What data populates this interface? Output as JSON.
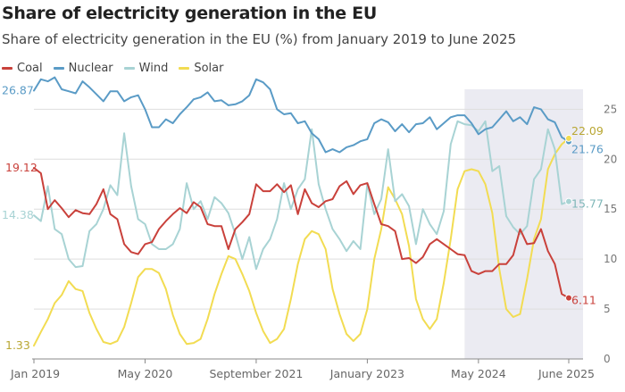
{
  "header": {
    "title": "Share of electricity generation in the EU",
    "subtitle": "Share of electricity generation in the EU (%) from January 2019 to June 2025"
  },
  "legend": [
    {
      "label": "Coal",
      "color": "#c9413b"
    },
    {
      "label": "Nuclear",
      "color": "#5a9bc6"
    },
    {
      "label": "Wind",
      "color": "#a8d3d4"
    },
    {
      "label": "Solar",
      "color": "#f2dc52"
    }
  ],
  "colors": {
    "highlight": "#ebebf2",
    "grid": "#dedede",
    "axis": "#888888",
    "tick_text": "#777777"
  },
  "chart_data": {
    "type": "line",
    "title": "Share of electricity generation in the EU",
    "subtitle": "Share of electricity generation in the EU (%) from January 2019 to June 2025",
    "xlabel": "",
    "ylabel": "%",
    "ylim": [
      0,
      27
    ],
    "yticks": [
      0,
      5,
      10,
      15,
      20,
      25
    ],
    "x_start": "Jan 2019",
    "n_months": 78,
    "x_tick_labels": [
      {
        "month_index": 0,
        "label": "Jan 2019"
      },
      {
        "month_index": 16,
        "label": "May 2020"
      },
      {
        "month_index": 32,
        "label": "September 2021"
      },
      {
        "month_index": 48,
        "label": "January 2023"
      },
      {
        "month_index": 64,
        "label": "May 2024"
      },
      {
        "month_index": 77,
        "label": "June 2025"
      }
    ],
    "highlight_range": [
      62,
      77
    ],
    "grid": true,
    "series": [
      {
        "name": "Coal",
        "color": "#c9413b",
        "end_label": "6.11",
        "start_label": "19.12",
        "values": [
          19.12,
          18.6,
          15.0,
          15.9,
          15.1,
          14.2,
          14.9,
          14.6,
          14.5,
          15.5,
          17.0,
          14.5,
          14.0,
          11.5,
          10.7,
          10.5,
          11.5,
          11.7,
          13.0,
          13.8,
          14.5,
          15.1,
          14.6,
          15.7,
          15.2,
          13.5,
          13.3,
          13.3,
          11.0,
          13.0,
          13.7,
          14.5,
          17.5,
          16.8,
          16.8,
          17.5,
          16.7,
          17.4,
          14.5,
          17.0,
          15.6,
          15.2,
          15.8,
          16.0,
          17.3,
          17.8,
          16.5,
          17.4,
          17.6,
          15.5,
          13.5,
          13.3,
          12.8,
          10.0,
          10.1,
          9.6,
          10.2,
          11.5,
          12.0,
          11.5,
          11.0,
          10.5,
          10.4,
          8.8,
          8.5,
          8.8,
          8.8,
          9.5,
          9.5,
          10.4,
          13.0,
          11.5,
          11.6,
          13.0,
          10.8,
          9.5,
          6.5,
          6.11
        ]
      },
      {
        "name": "Nuclear",
        "color": "#5a9bc6",
        "end_label": "21.76",
        "start_label": "26.87",
        "values": [
          26.87,
          28.0,
          27.8,
          28.2,
          27.0,
          26.8,
          26.6,
          27.8,
          27.2,
          26.5,
          25.8,
          26.8,
          26.8,
          25.8,
          26.2,
          26.4,
          25.0,
          23.2,
          23.2,
          24.0,
          23.6,
          24.5,
          25.2,
          26.0,
          26.2,
          26.7,
          25.8,
          25.9,
          25.4,
          25.5,
          25.8,
          26.4,
          28.0,
          27.7,
          27.0,
          25.0,
          24.5,
          24.6,
          23.6,
          23.8,
          22.6,
          22.0,
          20.7,
          21.0,
          20.7,
          21.2,
          21.4,
          21.8,
          22.0,
          23.6,
          24.0,
          23.7,
          22.8,
          23.5,
          22.7,
          23.5,
          23.6,
          24.2,
          23.0,
          23.6,
          24.2,
          24.4,
          24.4,
          23.6,
          22.5,
          23.0,
          23.2,
          24.0,
          24.8,
          23.8,
          24.2,
          23.5,
          25.2,
          25.0,
          24.0,
          23.7,
          22.2,
          21.76
        ]
      },
      {
        "name": "Wind",
        "color": "#a8d3d4",
        "end_label": "15.77",
        "start_label": "14.38",
        "values": [
          14.38,
          13.8,
          17.3,
          13.0,
          12.5,
          10.0,
          9.2,
          9.3,
          12.8,
          13.5,
          15.0,
          17.4,
          16.4,
          22.6,
          17.3,
          14.0,
          13.5,
          11.5,
          11.0,
          11.0,
          11.5,
          13.0,
          17.6,
          15.0,
          15.8,
          14.0,
          16.2,
          15.6,
          14.6,
          12.5,
          10.0,
          12.2,
          9.0,
          11.0,
          12.0,
          14.0,
          17.6,
          15.0,
          17.0,
          18.0,
          23.0,
          17.5,
          15.0,
          13.0,
          12.0,
          10.8,
          11.8,
          11.0,
          17.5,
          14.5,
          16.0,
          21.0,
          15.8,
          16.5,
          15.3,
          11.5,
          15.0,
          13.5,
          12.5,
          14.8,
          21.5,
          23.8,
          23.5,
          23.4,
          22.8,
          23.8,
          18.8,
          19.3,
          14.3,
          13.2,
          12.5,
          13.3,
          18.0,
          19.0,
          23.0,
          21.0,
          15.5,
          15.77
        ]
      },
      {
        "name": "Solar",
        "color": "#f2dc52",
        "end_label": "22.09",
        "start_label": "1.33",
        "values": [
          1.33,
          2.7,
          4.0,
          5.6,
          6.4,
          7.8,
          7.0,
          6.8,
          4.6,
          3.0,
          1.7,
          1.5,
          1.8,
          3.2,
          5.6,
          8.2,
          9.0,
          9.0,
          8.6,
          7.0,
          4.4,
          2.5,
          1.5,
          1.6,
          2.0,
          4.0,
          6.5,
          8.5,
          10.3,
          10.0,
          8.5,
          6.8,
          4.6,
          2.8,
          1.6,
          2.0,
          3.0,
          6.0,
          9.5,
          12.0,
          12.8,
          12.5,
          11.0,
          7.0,
          4.5,
          2.5,
          1.8,
          2.5,
          5.0,
          10.0,
          13.0,
          17.2,
          16.0,
          14.5,
          11.3,
          6.0,
          4.0,
          3.0,
          4.0,
          7.6,
          12.0,
          17.0,
          18.8,
          19.0,
          18.8,
          17.5,
          14.6,
          9.0,
          5.0,
          4.2,
          4.5,
          8.0,
          12.0,
          14.0,
          19.0,
          20.5,
          21.5,
          22.09
        ]
      }
    ]
  }
}
